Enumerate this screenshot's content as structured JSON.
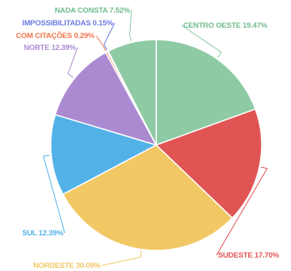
{
  "chart_data": {
    "type": "pie",
    "title": "",
    "slices": [
      {
        "label": "CENTRO OESTE 19.47%",
        "value": 19.47,
        "color": "#8ecaa4"
      },
      {
        "label": "SUDESTE 17.70%",
        "value": 17.7,
        "color": "#e05454"
      },
      {
        "label": "NORDESTE 30.09%",
        "value": 30.09,
        "color": "#f2c865"
      },
      {
        "label": "SUL 12.39%",
        "value": 12.39,
        "color": "#52b2e8"
      },
      {
        "label": "NORTE 12.39%",
        "value": 12.39,
        "color": "#ab8ad2"
      },
      {
        "label": "COM CITAÇÕES 0.29%",
        "value": 0.29,
        "color": "#f2764a"
      },
      {
        "label": "IMPOSSIBILITADAS 0.15%",
        "value": 0.15,
        "color": "#6c7ce0"
      },
      {
        "label": "NADA CONSTA 7.52%",
        "value": 7.52,
        "color": "#8ecaa4"
      }
    ],
    "legend": "none",
    "start_angle": "12 o'clock",
    "direction": "clockwise"
  }
}
